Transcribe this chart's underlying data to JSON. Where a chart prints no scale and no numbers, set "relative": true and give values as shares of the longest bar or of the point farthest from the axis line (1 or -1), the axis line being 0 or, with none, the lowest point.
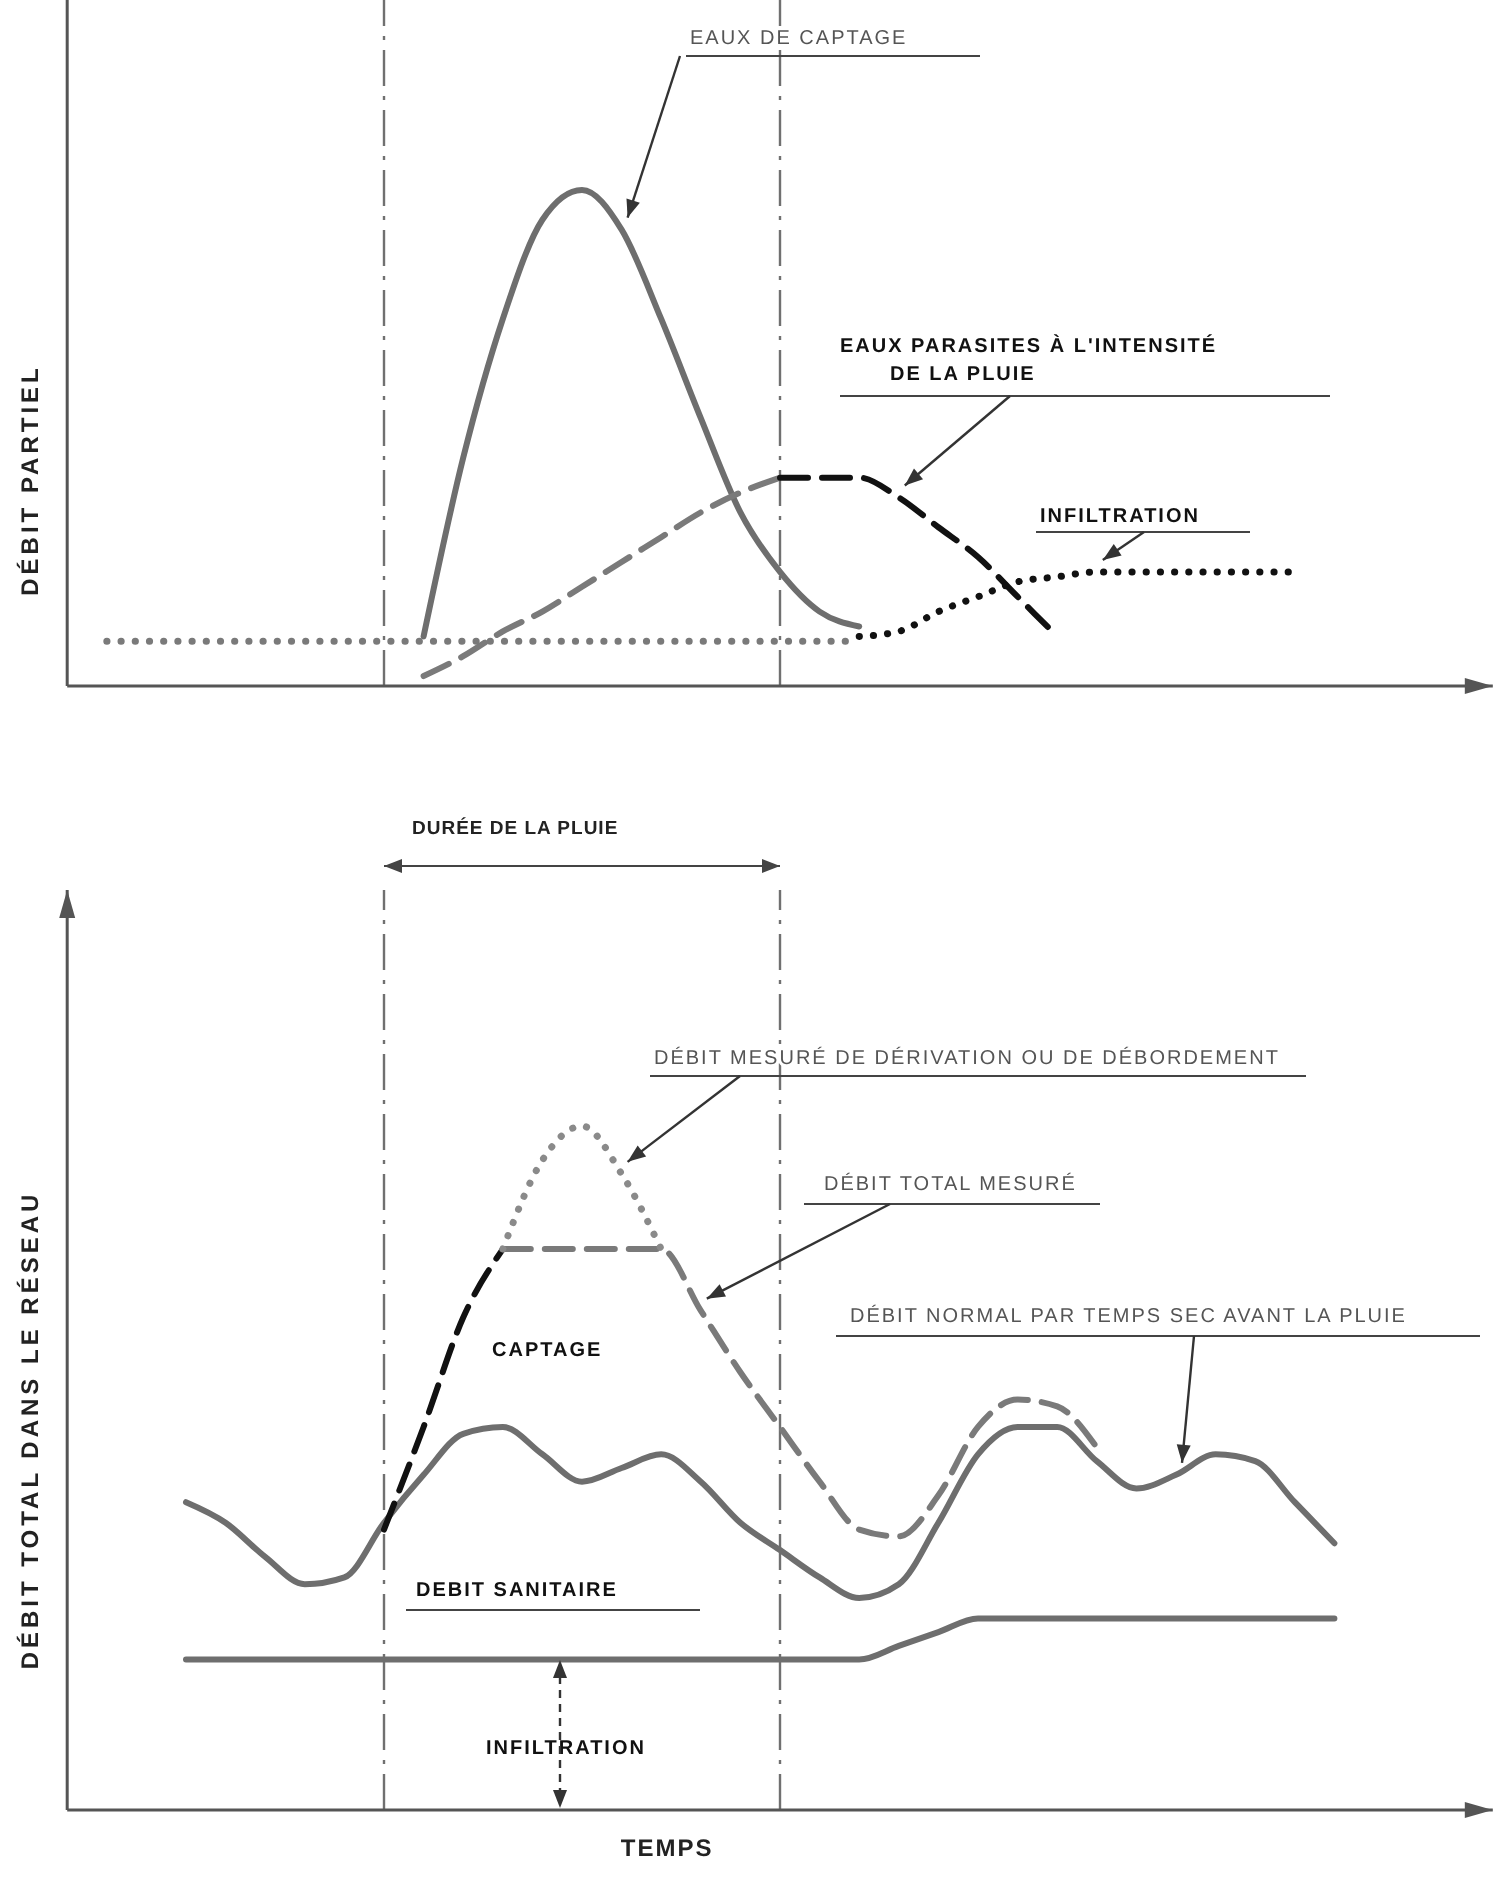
{
  "chart_data": [
    {
      "type": "line",
      "ylabel": "DÉBIT PARTIEL",
      "relative": true,
      "tick_labels": false,
      "categories": [
        null,
        null,
        null,
        null,
        null,
        null,
        null,
        null,
        null,
        null,
        null,
        null,
        null,
        null,
        null,
        null,
        null,
        null,
        null,
        null,
        null,
        null,
        null,
        null,
        null,
        null,
        null,
        null,
        null,
        null,
        null,
        null,
        null,
        null,
        null,
        null,
        null
      ],
      "series": [
        {
          "name": "EAUX DE CAPTAGE",
          "color": "#6e6e6e",
          "line_style": "solid",
          "values": [
            null,
            null,
            null,
            null,
            null,
            null,
            null,
            null,
            null,
            0.1,
            0.46,
            0.74,
            0.94,
            1,
            0.92,
            0.74,
            0.54,
            0.35,
            0.23,
            0.15,
            0.12,
            null,
            null,
            null,
            null,
            null,
            null,
            null,
            null,
            null,
            null,
            null,
            null,
            null,
            null,
            null,
            null
          ]
        },
        {
          "color": "#7a7a7a",
          "line_style": "dashed",
          "values": [
            null,
            null,
            null,
            null,
            null,
            null,
            null,
            null,
            null,
            0.02,
            0.06,
            0.11,
            0.15,
            0.2,
            0.25,
            0.3,
            0.35,
            0.39,
            0.42,
            null,
            null,
            null,
            null,
            null,
            null,
            null,
            null,
            null,
            null,
            null,
            null,
            null,
            null,
            null,
            null,
            null,
            null
          ]
        },
        {
          "name": "EAUX PARASITES À L'INTENSITÉ DE LA PLUIE",
          "color": "#111111",
          "line_style": "dashed",
          "values": [
            null,
            null,
            null,
            null,
            null,
            null,
            null,
            null,
            null,
            null,
            null,
            null,
            null,
            null,
            null,
            null,
            null,
            null,
            0.42,
            0.42,
            0.42,
            0.38,
            0.32,
            0.26,
            0.18,
            0.1,
            null,
            null,
            null,
            null,
            null,
            null,
            null,
            null,
            null,
            null,
            null
          ]
        },
        {
          "color": "#7a7a7a",
          "line_style": "dotted",
          "values": [
            null,
            0.09,
            0.09,
            0.09,
            0.09,
            0.09,
            0.09,
            0.09,
            0.09,
            0.09,
            0.09,
            0.09,
            0.09,
            0.09,
            0.09,
            0.09,
            0.09,
            0.09,
            0.09,
            0.09,
            0.09,
            null,
            null,
            null,
            null,
            null,
            null,
            null,
            null,
            null,
            null,
            null,
            null,
            null,
            null,
            null,
            null
          ]
        },
        {
          "name": "INFILTRATION",
          "color": "#111111",
          "line_style": "dotted",
          "values": [
            null,
            null,
            null,
            null,
            null,
            null,
            null,
            null,
            null,
            null,
            null,
            null,
            null,
            null,
            null,
            null,
            null,
            null,
            null,
            null,
            0.1,
            0.11,
            0.15,
            0.18,
            0.21,
            0.22,
            0.23,
            0.23,
            0.23,
            0.23,
            0.23,
            0.23,
            null,
            null,
            null,
            null,
            null
          ]
        }
      ],
      "annotations": [
        "DURÉE DE LA PLUIE"
      ]
    },
    {
      "type": "line",
      "ylabel": "DÉBIT TOTAL DANS LE RÉSEAU",
      "xlabel": "TEMPS",
      "relative": true,
      "tick_labels": false,
      "categories": [
        null,
        null,
        null,
        null,
        null,
        null,
        null,
        null,
        null,
        null,
        null,
        null,
        null,
        null,
        null,
        null,
        null,
        null,
        null,
        null,
        null,
        null,
        null,
        null,
        null,
        null,
        null,
        null,
        null,
        null,
        null,
        null,
        null,
        null,
        null,
        null,
        null
      ],
      "series": [
        {
          "color": "#6e6e6e",
          "line_style": "solid",
          "values": [
            null,
            null,
            null,
            0.22,
            0.22,
            0.22,
            0.22,
            0.22,
            0.22,
            0.22,
            0.22,
            0.22,
            0.22,
            0.22,
            0.22,
            0.22,
            0.22,
            0.22,
            0.22,
            0.22,
            0.22,
            0.24,
            0.26,
            0.28,
            0.28,
            0.28,
            0.28,
            0.28,
            0.28,
            0.28,
            0.28,
            0.28,
            0.28,
            null,
            null,
            null,
            null
          ]
        },
        {
          "name": "DÉBIT NORMAL PAR TEMPS SEC AVANT LA PLUIE",
          "color": "#6e6e6e",
          "line_style": "solid",
          "values": [
            null,
            null,
            null,
            0.45,
            0.42,
            0.37,
            0.33,
            0.34,
            0.42,
            0.49,
            0.55,
            0.56,
            0.52,
            0.48,
            0.5,
            0.52,
            0.48,
            0.42,
            0.38,
            0.34,
            0.31,
            0.33,
            0.42,
            0.52,
            0.56,
            0.56,
            0.51,
            0.47,
            0.49,
            0.52,
            0.51,
            0.45,
            0.39,
            null,
            null,
            null,
            null
          ]
        },
        {
          "color": "#111111",
          "line_style": "dashed",
          "values": [
            null,
            null,
            null,
            null,
            null,
            null,
            null,
            null,
            0.41,
            0.56,
            0.72,
            0.82,
            null,
            null,
            null,
            null,
            null,
            null,
            null,
            null,
            null,
            null,
            null,
            null,
            null,
            null,
            null,
            null,
            null,
            null,
            null,
            null,
            null,
            null,
            null,
            null,
            null
          ]
        },
        {
          "name": "DÉBIT TOTAL MESURÉ",
          "color": "#7a7a7a",
          "line_style": "dashed",
          "values": [
            null,
            null,
            null,
            null,
            null,
            null,
            null,
            null,
            null,
            null,
            null,
            0.82,
            0.82,
            0.82,
            0.82,
            0.82,
            0.73,
            0.64,
            0.56,
            0.48,
            0.41,
            0.4,
            0.46,
            0.56,
            0.6,
            0.59,
            0.53,
            null,
            null,
            null,
            null,
            null,
            null,
            null,
            null,
            null,
            null
          ]
        },
        {
          "name": "DÉBIT MESURÉ DE DÉRIVATION OU DE DÉBORDEMENT",
          "color": "#8a8a8a",
          "line_style": "dotted",
          "values": [
            null,
            null,
            null,
            null,
            null,
            null,
            null,
            null,
            null,
            null,
            null,
            0.82,
            0.95,
            1,
            0.93,
            0.82,
            null,
            null,
            null,
            null,
            null,
            null,
            null,
            null,
            null,
            null,
            null,
            null,
            null,
            null,
            null,
            null,
            null,
            null,
            null,
            null,
            null
          ]
        }
      ],
      "annotations": [
        "CAPTAGE",
        "DEBIT SANITAIRE",
        "INFILTRATION"
      ]
    }
  ]
}
